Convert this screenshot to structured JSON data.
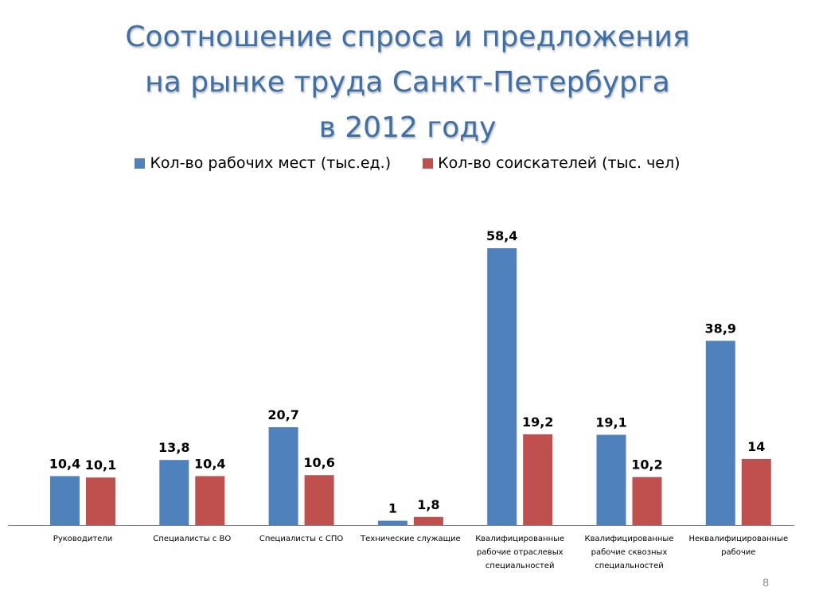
{
  "slide": {
    "title_lines": [
      "Соотношение спроса и предложения",
      "на рынке труда Санкт-Петербурга",
      "в 2012 году"
    ],
    "page_number": "8"
  },
  "chart_data": {
    "type": "bar",
    "title": "Соотношение спроса и предложения на рынке труда Санкт-Петербурга в 2012 году",
    "xlabel": "",
    "ylabel": "",
    "legend_position": "top",
    "grid": false,
    "categories": [
      "Руководители",
      "Специалисты  с ВО",
      "Специалисты с СПО",
      "Технические служащие",
      "Квалифицированные рабочие отраслевых специальностей",
      "Квалифицированные рабочие сквозных специальностей",
      "Неквалифицированные рабочие"
    ],
    "category_lines": [
      [
        "Руководители"
      ],
      [
        "Специалисты  с ВО"
      ],
      [
        "Специалисты с СПО"
      ],
      [
        "Технические служащие"
      ],
      [
        "Квалифицированные",
        "рабочие отраслевых",
        "специальностей"
      ],
      [
        "Квалифицированные",
        "рабочие сквозных",
        "специальностей"
      ],
      [
        "Неквалифицированные",
        "рабочие"
      ]
    ],
    "series": [
      {
        "name": "Кол-во рабочих мест (тыс.ед.)",
        "color": "#4f81bd",
        "values": [
          10.4,
          13.8,
          20.7,
          1,
          58.4,
          19.1,
          38.9
        ],
        "labels": [
          "10,4",
          "13,8",
          "20,7",
          "1",
          "58,4",
          "19,1",
          "38,9"
        ]
      },
      {
        "name": "Кол-во соискателей (тыс. чел)",
        "color": "#c0504d",
        "values": [
          10.1,
          10.4,
          10.6,
          1.8,
          19.2,
          10.2,
          14
        ],
        "labels": [
          "10,1",
          "10,4",
          "10,6",
          "1,8",
          "19,2",
          "10,2",
          "14"
        ]
      }
    ],
    "ylim": [
      0,
      58.4
    ]
  }
}
